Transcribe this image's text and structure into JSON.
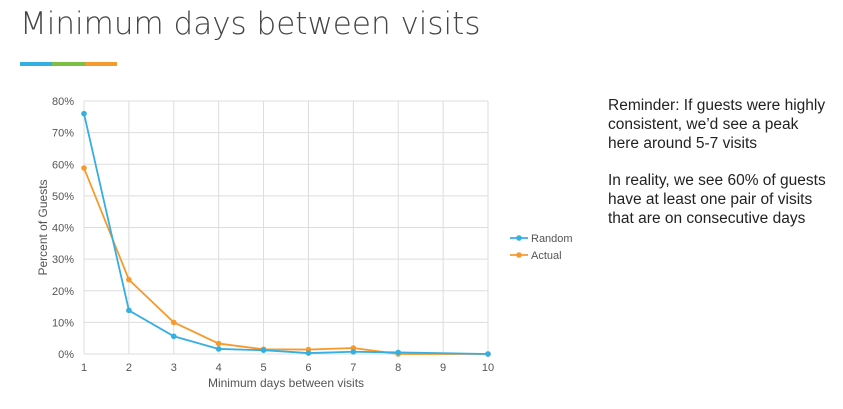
{
  "slide": {
    "title": "Minimum days between visits"
  },
  "colors": {
    "underline": [
      "#35aee2",
      "#7cbf43",
      "#f79a2e"
    ],
    "random": "#35aee2",
    "actual": "#f79a2e",
    "grid": "#dddddd",
    "axis_text": "#555555"
  },
  "notes": {
    "reminder": "Reminder: If guests were highly consistent, we’d see a peak here around 5-7 visits",
    "reality": "In reality, we see 60% of guests have at least one pair of visits that are on consecutive days"
  },
  "chart_data": {
    "type": "line",
    "x": [
      1,
      2,
      3,
      4,
      5,
      6,
      7,
      8,
      9,
      10
    ],
    "xlabel": "Minimum days between visits",
    "ylabel": "Percent of Guests",
    "ylim": [
      0,
      80
    ],
    "yticks": [
      "0%",
      "10%",
      "20%",
      "30%",
      "40%",
      "50%",
      "60%",
      "70%",
      "80%"
    ],
    "grid": true,
    "legend_position": "right",
    "series": [
      {
        "name": "Random",
        "values": [
          76,
          13.8,
          5.6,
          1.6,
          1.2,
          0.3,
          0.7,
          0.5,
          null,
          0
        ]
      },
      {
        "name": "Actual",
        "values": [
          58.8,
          23.5,
          10,
          3.3,
          1.5,
          1.4,
          1.9,
          0,
          null,
          0
        ]
      }
    ]
  }
}
